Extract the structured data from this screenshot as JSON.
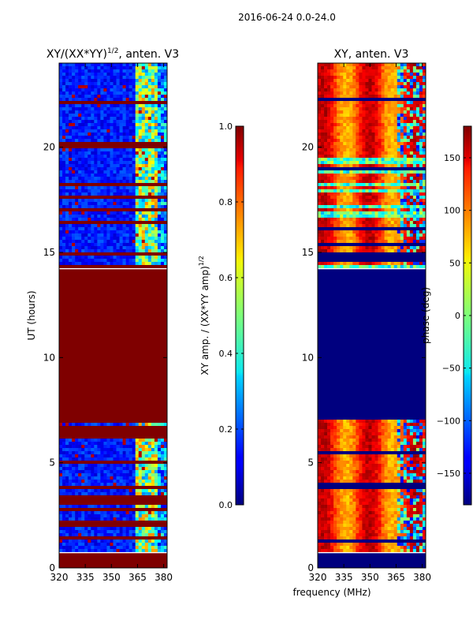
{
  "figure_title": "2016-06-24 0.0-24.0",
  "shared_xlabel": "frequency (MHz)",
  "chart_data": [
    {
      "type": "heatmap",
      "title_prefix": "XY/(XX*YY)",
      "title_sup": "1/2",
      "title_suffix": ", anten. V3",
      "xlabel": "frequency (MHz)",
      "ylabel": "UT (hours)",
      "xlim": [
        320,
        382
      ],
      "ylim": [
        0,
        24
      ],
      "xticks": [
        320,
        335,
        350,
        365,
        380
      ],
      "yticks": [
        0,
        5,
        10,
        15,
        20
      ],
      "colorbar": {
        "label_prefix": "XY amp. / (XX*YY amp)",
        "label_sup": "1/2",
        "range": [
          0.0,
          1.0
        ],
        "ticks": [
          "0.0",
          "0.2",
          "0.4",
          "0.6",
          "0.8",
          "1.0"
        ],
        "tick_values": [
          0.0,
          0.2,
          0.4,
          0.6,
          0.8,
          1.0
        ],
        "colormap": "jet"
      },
      "regions": [
        {
          "ut_start": 0.0,
          "ut_end": 0.7,
          "description": "saturated",
          "value": 1.0
        },
        {
          "ut_start": 0.7,
          "ut_end": 7.2,
          "description": "mixed low amplitude with high values 363-375 MHz",
          "value": 0.2
        },
        {
          "ut_start": 7.2,
          "ut_end": 14.2,
          "description": "saturated",
          "value": 1.0
        },
        {
          "ut_start": 14.2,
          "ut_end": 24.0,
          "description": "mixed low amplitude with high values 363-380 MHz",
          "value": 0.2
        }
      ]
    },
    {
      "type": "heatmap",
      "title": "XY, anten. V3",
      "xlabel": "frequency (MHz)",
      "ylabel": "",
      "xlim": [
        320,
        382
      ],
      "ylim": [
        0,
        24
      ],
      "xticks": [
        320,
        335,
        350,
        365,
        380
      ],
      "yticks": [
        0,
        5,
        10,
        15,
        20
      ],
      "colorbar": {
        "label": "phase (deg)",
        "range": [
          -180,
          180
        ],
        "ticks": [
          "−150",
          "−100",
          "−50",
          "0",
          "50",
          "100",
          "150"
        ],
        "tick_values": [
          -150,
          -100,
          -50,
          0,
          50,
          100,
          150
        ],
        "colormap": "jet"
      },
      "regions": [
        {
          "ut_start": 0.0,
          "ut_end": 0.7,
          "description": "blank",
          "value": -180
        },
        {
          "ut_start": 0.7,
          "ut_end": 7.2,
          "description": "phase stripes with fringe pattern",
          "value": 150
        },
        {
          "ut_start": 7.2,
          "ut_end": 14.2,
          "description": "blank",
          "value": -180
        },
        {
          "ut_start": 14.2,
          "ut_end": 24.0,
          "description": "phase stripes with fringe pattern",
          "value": 150
        }
      ]
    }
  ]
}
